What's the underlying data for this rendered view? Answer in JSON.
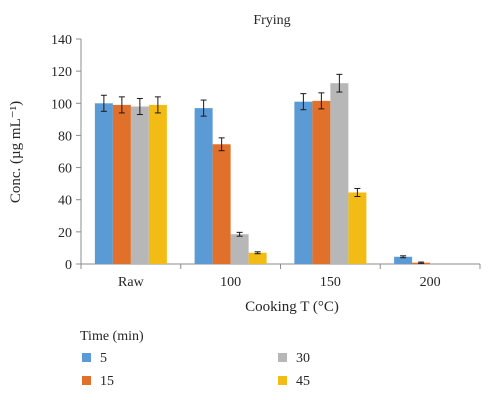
{
  "chart_data": {
    "type": "bar",
    "title": "Frying",
    "xlabel": "Cooking T (°C)",
    "ylabel": "Conc. (µg mL⁻¹)",
    "categories": [
      "Raw",
      "100",
      "150",
      "200"
    ],
    "ylim": [
      0,
      140
    ],
    "yticks": [
      0,
      20,
      40,
      60,
      80,
      100,
      120,
      140
    ],
    "grid": false,
    "legend": {
      "title": "Time (min)",
      "placement": "bottom-left"
    },
    "series": [
      {
        "name": "5",
        "color": "#5b9bd5",
        "values": [
          100,
          97,
          101,
          4.5
        ],
        "errors": [
          5,
          5,
          5,
          0.6
        ]
      },
      {
        "name": "15",
        "color": "#e0702a",
        "values": [
          99,
          74.5,
          101.5,
          0.8
        ],
        "errors": [
          5,
          4,
          5,
          0.4
        ]
      },
      {
        "name": "30",
        "color": "#b7b7b7",
        "values": [
          98,
          18.5,
          112.5,
          0
        ],
        "errors": [
          5,
          1.2,
          5.5,
          0
        ]
      },
      {
        "name": "45",
        "color": "#f2bc14",
        "values": [
          99,
          7,
          44.5,
          0
        ],
        "errors": [
          5,
          0.6,
          2.5,
          0
        ]
      }
    ]
  }
}
